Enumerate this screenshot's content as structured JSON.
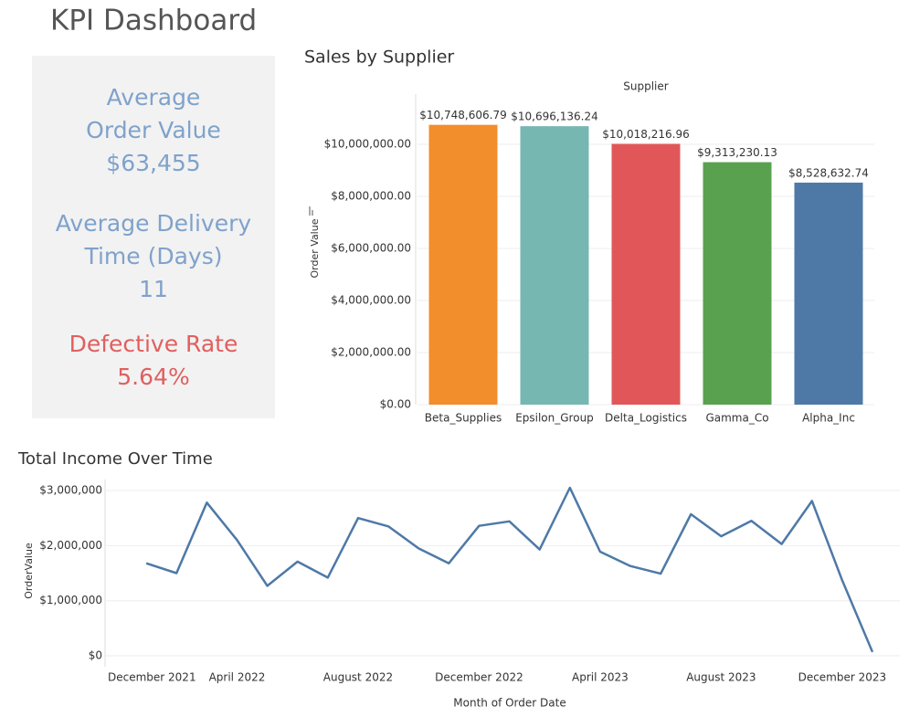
{
  "title": "KPI Dashboard",
  "kpis": [
    {
      "label": "Average Order Value",
      "value": "$63,455"
    },
    {
      "label": "Average Delivery Time (Days)",
      "value": "11"
    },
    {
      "label": "Defective Rate",
      "value": "5.64%"
    }
  ],
  "chart_data": [
    {
      "type": "bar",
      "title": "Sales by Supplier",
      "header": "Supplier",
      "y_label": "Order Value",
      "categories": [
        "Beta_Supplies",
        "Epsilon_Group",
        "Delta_Logistics",
        "Gamma_Co",
        "Alpha_Inc"
      ],
      "values": [
        10748606.79,
        10696136.24,
        10018216.96,
        9313230.13,
        8528632.74
      ],
      "value_labels": [
        "$10,748,606.79",
        "$10,696,136.24",
        "$10,018,216.96",
        "$9,313,230.13",
        "$8,528,632.74"
      ],
      "colors": [
        "#f28e2b",
        "#76b7b2",
        "#e15759",
        "#59a14f",
        "#4e79a7"
      ],
      "ylim": [
        0,
        12000000
      ],
      "yticks": [
        {
          "value": 0,
          "label": "$0.00"
        },
        {
          "value": 2000000,
          "label": "$2,000,000.00"
        },
        {
          "value": 4000000,
          "label": "$4,000,000.00"
        },
        {
          "value": 6000000,
          "label": "$6,000,000.00"
        },
        {
          "value": 8000000,
          "label": "$8,000,000.00"
        },
        {
          "value": 10000000,
          "label": "$10,000,000.00"
        }
      ],
      "grid": true
    },
    {
      "type": "line",
      "title": "Total Income Over Time",
      "x_label": "Month of Order Date",
      "y_label": "OrderValue",
      "x": [
        "2022-01",
        "2022-02",
        "2022-03",
        "2022-04",
        "2022-05",
        "2022-06",
        "2022-07",
        "2022-08",
        "2022-09",
        "2022-10",
        "2022-11",
        "2022-12",
        "2023-01",
        "2023-02",
        "2023-03",
        "2023-04",
        "2023-05",
        "2023-06",
        "2023-07",
        "2023-08",
        "2023-09",
        "2023-10",
        "2023-11",
        "2023-12",
        "2024-01"
      ],
      "values": [
        1680000,
        1500000,
        2780000,
        2100000,
        1270000,
        1710000,
        1420000,
        2500000,
        2350000,
        1950000,
        1680000,
        2360000,
        2440000,
        1930000,
        3050000,
        1890000,
        1630000,
        1490000,
        2570000,
        2170000,
        2450000,
        2030000,
        2810000,
        1370000,
        70000
      ],
      "color": "#4e79a7",
      "xlim": [
        "2021-12",
        "2024-01"
      ],
      "xticks": [
        {
          "value": "2021-12",
          "label": "December 2021"
        },
        {
          "value": "2022-04",
          "label": "April 2022"
        },
        {
          "value": "2022-08",
          "label": "August 2022"
        },
        {
          "value": "2022-12",
          "label": "December 2022"
        },
        {
          "value": "2023-04",
          "label": "April 2023"
        },
        {
          "value": "2023-08",
          "label": "August 2023"
        },
        {
          "value": "2023-12",
          "label": "December 2023"
        }
      ],
      "ylim": [
        0,
        3200000
      ],
      "yticks": [
        {
          "value": 0,
          "label": "$0"
        },
        {
          "value": 1000000,
          "label": "$1,000,000"
        },
        {
          "value": 2000000,
          "label": "$2,000,000"
        },
        {
          "value": 3000000,
          "label": "$3,000,000"
        }
      ],
      "grid": true
    }
  ]
}
